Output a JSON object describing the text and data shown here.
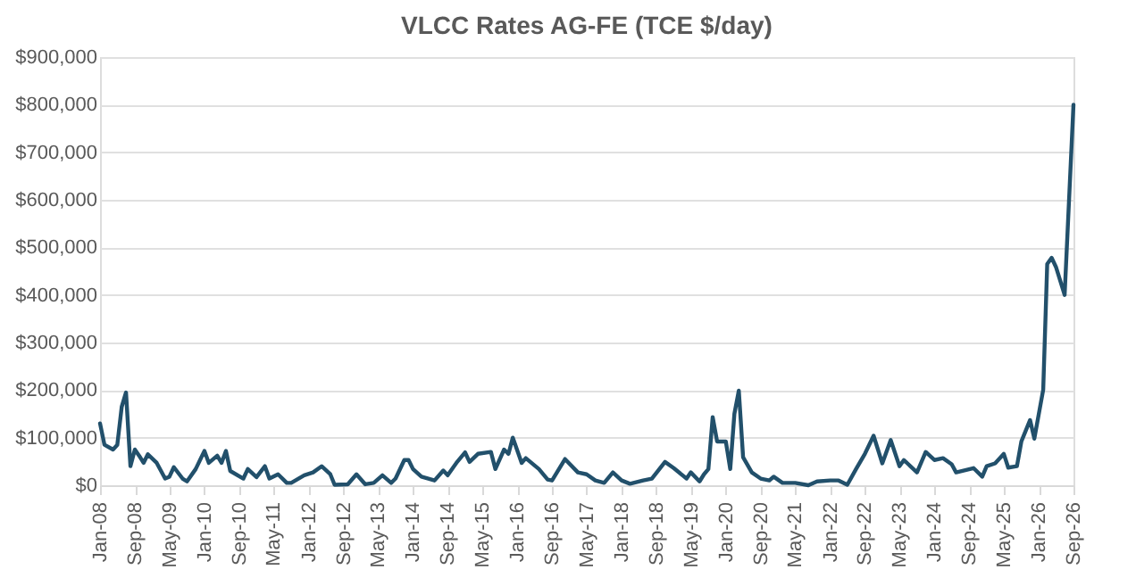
{
  "chart_data": {
    "type": "line",
    "title": "VLCC Rates AG-FE (TCE $/day)",
    "x": [
      "2008-01",
      "2008-02",
      "2008-04",
      "2008-05",
      "2008-06",
      "2008-07",
      "2008-08",
      "2008-09",
      "2008-10",
      "2008-11",
      "2008-12",
      "2009-02",
      "2009-04",
      "2009-05",
      "2009-06",
      "2009-08",
      "2009-09",
      "2009-11",
      "2010-01",
      "2010-02",
      "2010-04",
      "2010-05",
      "2010-06",
      "2010-07",
      "2010-10",
      "2010-11",
      "2011-01",
      "2011-03",
      "2011-04",
      "2011-06",
      "2011-08",
      "2011-09",
      "2011-12",
      "2012-02",
      "2012-04",
      "2012-06",
      "2012-07",
      "2012-10",
      "2012-12",
      "2013-02",
      "2013-04",
      "2013-06",
      "2013-08",
      "2013-09",
      "2013-11",
      "2013-12",
      "2014-01",
      "2014-03",
      "2014-06",
      "2014-08",
      "2014-09",
      "2014-11",
      "2015-01",
      "2015-02",
      "2015-04",
      "2015-07",
      "2015-08",
      "2015-10",
      "2015-11",
      "2015-12",
      "2016-02",
      "2016-03",
      "2016-06",
      "2016-08",
      "2016-09",
      "2016-12",
      "2017-03",
      "2017-05",
      "2017-07",
      "2017-09",
      "2017-11",
      "2018-01",
      "2018-03",
      "2018-06",
      "2018-08",
      "2018-11",
      "2019-01",
      "2019-04",
      "2019-05",
      "2019-07",
      "2019-08",
      "2019-09",
      "2019-10",
      "2019-11",
      "2020-01",
      "2020-02",
      "2020-03",
      "2020-04",
      "2020-05",
      "2020-07",
      "2020-09",
      "2020-11",
      "2020-12",
      "2021-02",
      "2021-05",
      "2021-08",
      "2021-10",
      "2022-01",
      "2022-03",
      "2022-05",
      "2022-07",
      "2022-09",
      "2022-11",
      "2023-01",
      "2023-03",
      "2023-05",
      "2023-06",
      "2023-09",
      "2023-11",
      "2024-01",
      "2024-03",
      "2024-05",
      "2024-06",
      "2024-10",
      "2024-12",
      "2025-01",
      "2025-03",
      "2025-05",
      "2025-06",
      "2025-08",
      "2025-09",
      "2025-11",
      "2025-12",
      "2026-02",
      "2026-03",
      "2026-04",
      "2026-05",
      "2026-07",
      "2026-09"
    ],
    "series": [
      {
        "color": "#22506b",
        "values": [
          130000,
          85000,
          75000,
          85000,
          165000,
          195000,
          40000,
          75000,
          62000,
          47000,
          65000,
          47000,
          14000,
          18000,
          38000,
          14000,
          8000,
          34000,
          72000,
          47000,
          62000,
          47000,
          72000,
          30000,
          14000,
          34000,
          17000,
          40000,
          14000,
          23000,
          5000,
          5000,
          21000,
          27000,
          40000,
          23000,
          1000,
          2000,
          23000,
          2000,
          5000,
          21000,
          5000,
          14000,
          53000,
          53000,
          34000,
          18000,
          10000,
          31000,
          21000,
          47000,
          69000,
          49000,
          66000,
          70000,
          34000,
          75000,
          66000,
          100000,
          47000,
          57000,
          34000,
          12000,
          10000,
          55000,
          27000,
          23000,
          10000,
          5000,
          27000,
          10000,
          3000,
          10000,
          14000,
          49000,
          36000,
          14000,
          27000,
          8000,
          23000,
          34000,
          143000,
          92000,
          92000,
          34000,
          150000,
          199000,
          59000,
          27000,
          14000,
          10000,
          18000,
          5000,
          5000,
          0,
          8000,
          10000,
          10000,
          1000,
          34000,
          66000,
          104000,
          46000,
          95000,
          40000,
          53000,
          27000,
          70000,
          53000,
          57000,
          44000,
          27000,
          36000,
          18000,
          40000,
          46000,
          66000,
          37000,
          40000,
          92000,
          137000,
          98000,
          201000,
          465000,
          478000,
          459000,
          400000,
          800000
        ]
      }
    ],
    "xlim": [
      "2008-01",
      "2026-09"
    ],
    "xticks": [
      {
        "value": "2008-01",
        "label": "Jan-08"
      },
      {
        "value": "2008-09",
        "label": "Sep-08"
      },
      {
        "value": "2009-05",
        "label": "May-09"
      },
      {
        "value": "2010-01",
        "label": "Jan-10"
      },
      {
        "value": "2010-09",
        "label": "Sep-10"
      },
      {
        "value": "2011-05",
        "label": "May-11"
      },
      {
        "value": "2012-01",
        "label": "Jan-12"
      },
      {
        "value": "2012-09",
        "label": "Sep-12"
      },
      {
        "value": "2013-05",
        "label": "May-13"
      },
      {
        "value": "2014-01",
        "label": "Jan-14"
      },
      {
        "value": "2014-09",
        "label": "Sep-14"
      },
      {
        "value": "2015-05",
        "label": "May-15"
      },
      {
        "value": "2016-01",
        "label": "Jan-16"
      },
      {
        "value": "2016-09",
        "label": "Sep-16"
      },
      {
        "value": "2017-05",
        "label": "May-17"
      },
      {
        "value": "2018-01",
        "label": "Jan-18"
      },
      {
        "value": "2018-09",
        "label": "Sep-18"
      },
      {
        "value": "2019-05",
        "label": "May-19"
      },
      {
        "value": "2020-01",
        "label": "Jan-20"
      },
      {
        "value": "2020-09",
        "label": "Sep-20"
      },
      {
        "value": "2021-05",
        "label": "May-21"
      },
      {
        "value": "2022-01",
        "label": "Jan-22"
      },
      {
        "value": "2022-09",
        "label": "Sep-22"
      },
      {
        "value": "2023-05",
        "label": "May-23"
      },
      {
        "value": "2024-01",
        "label": "Jan-24"
      },
      {
        "value": "2024-09",
        "label": "Sep-24"
      },
      {
        "value": "2025-05",
        "label": "May-25"
      },
      {
        "value": "2026-01",
        "label": "Jan-26"
      },
      {
        "value": "2026-09",
        "label": "Sep-26"
      }
    ],
    "ylim": [
      0,
      900000
    ],
    "yticks": [
      {
        "value": 0,
        "label": "$0"
      },
      {
        "value": 100000,
        "label": "$100,000"
      },
      {
        "value": 200000,
        "label": "$200,000"
      },
      {
        "value": 300000,
        "label": "$300,000"
      },
      {
        "value": 400000,
        "label": "$400,000"
      },
      {
        "value": 500000,
        "label": "$500,000"
      },
      {
        "value": 600000,
        "label": "$600,000"
      },
      {
        "value": 700000,
        "label": "$700,000"
      },
      {
        "value": 800000,
        "label": "$800,000"
      },
      {
        "value": 900000,
        "label": "$900,000"
      }
    ],
    "grid": "y",
    "legend": false,
    "marker": "none",
    "line_style": "solid"
  }
}
